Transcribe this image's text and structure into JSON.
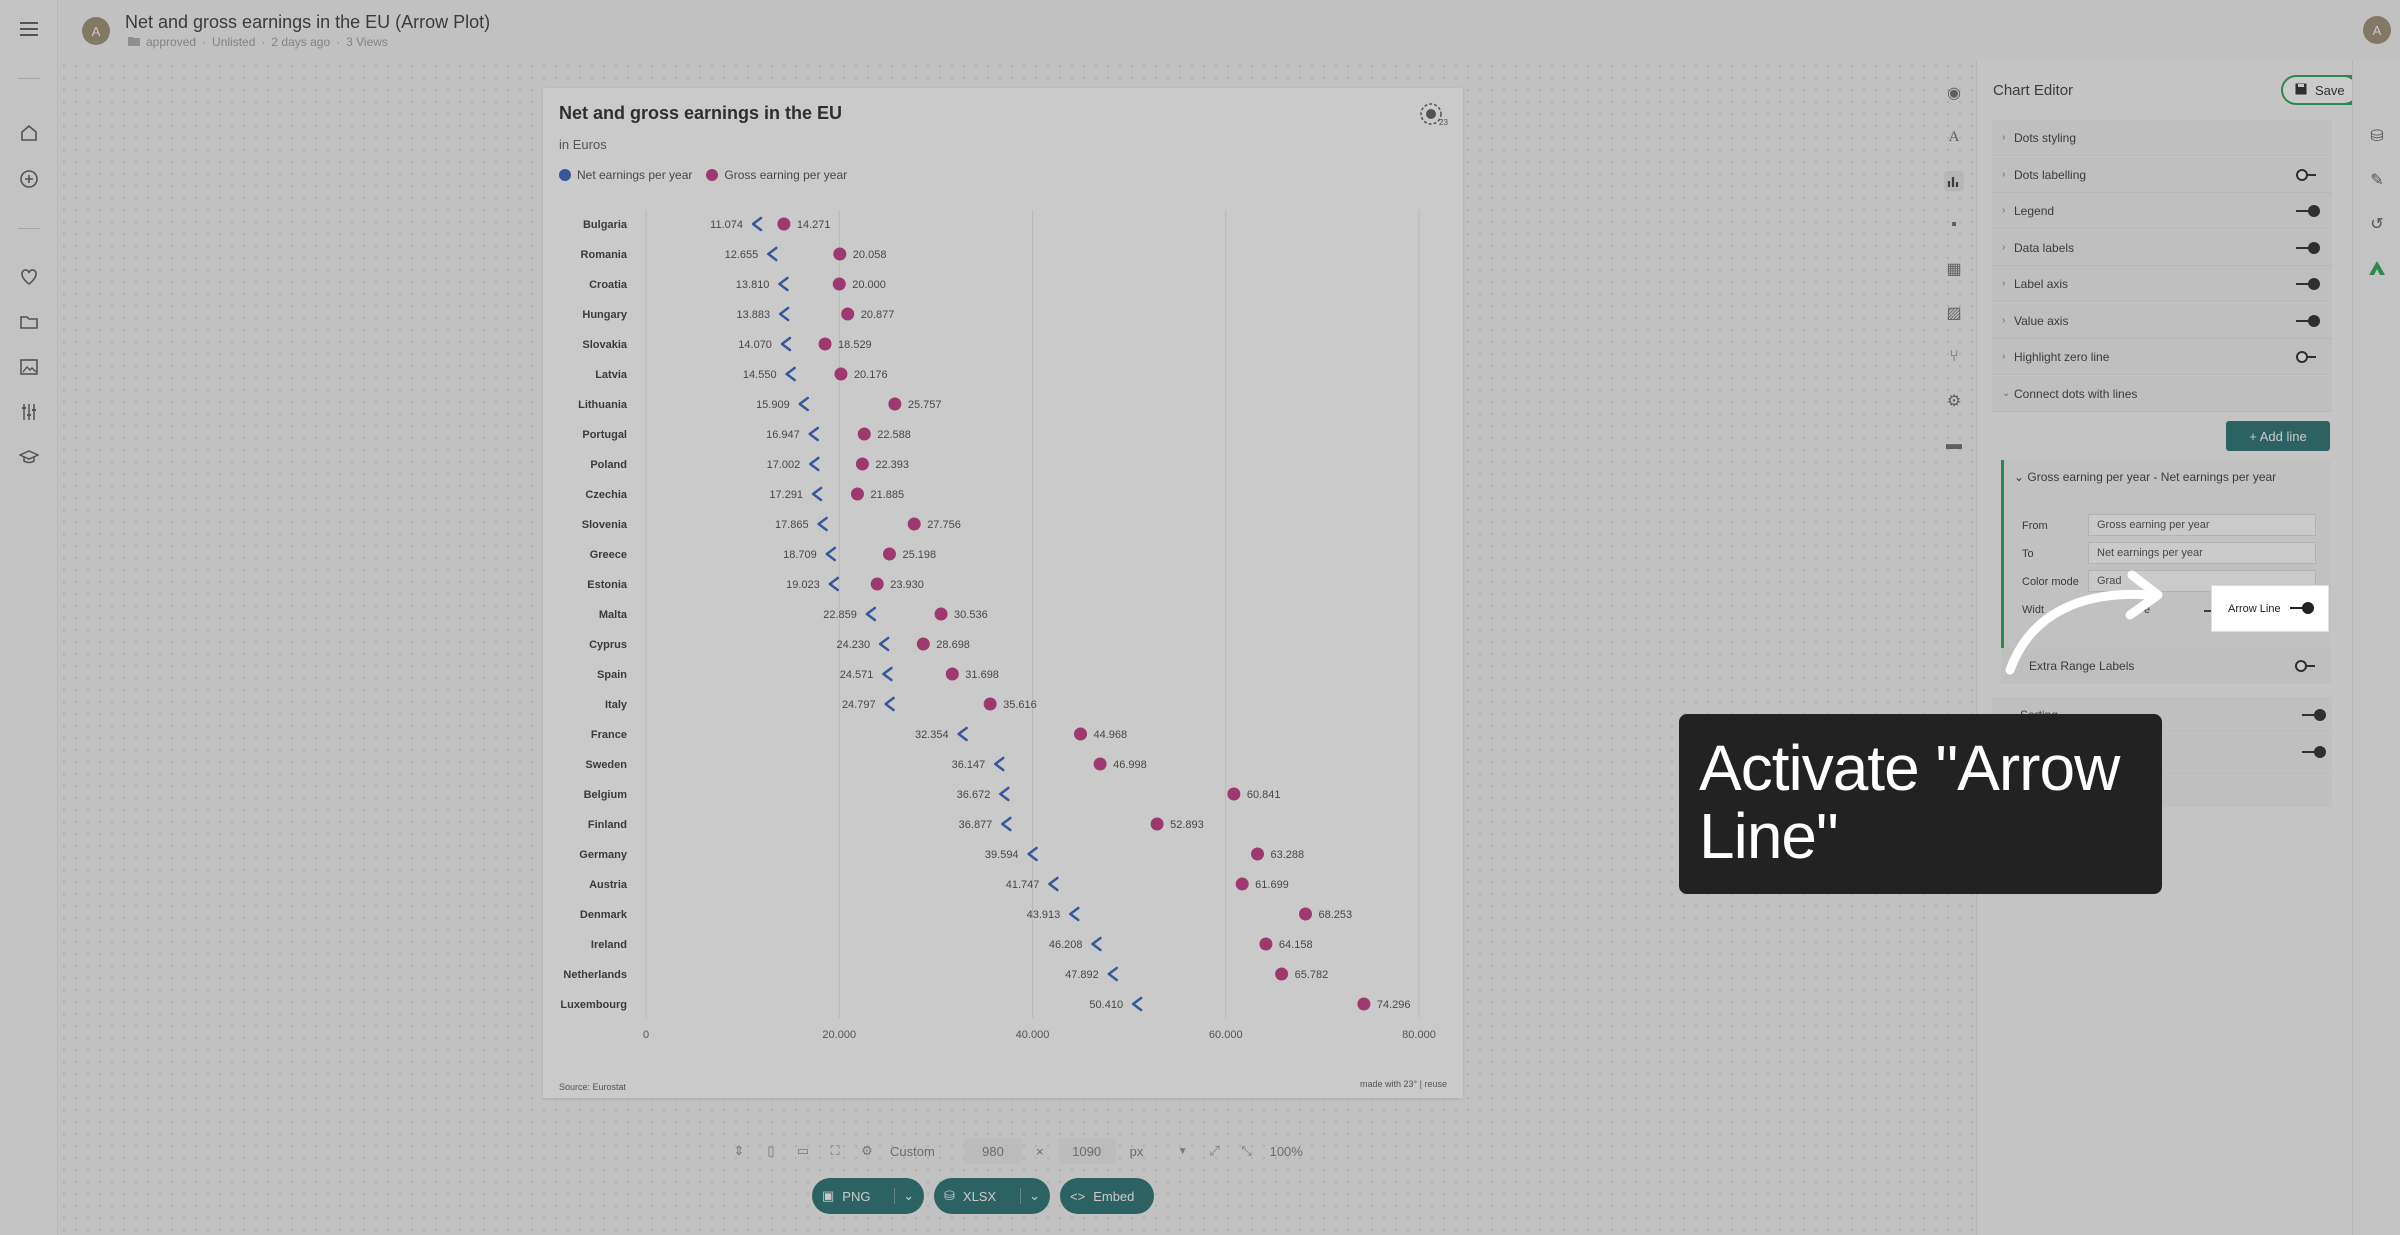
{
  "app": {
    "user_initial": "A",
    "doc_title": "Net and gross earnings in the EU (Arrow Plot)",
    "status": "approved",
    "visibility": "Unlisted",
    "time": "2 days ago",
    "views": "3 Views"
  },
  "chart_data": {
    "type": "arrow-dot",
    "title": "Net and gross earnings in the EU",
    "subtitle": "in Euros",
    "source": "Source: Eurostat",
    "made_with": "made with 23° | reuse",
    "xlim": [
      0,
      80000
    ],
    "ticks": [
      "0",
      "20.000",
      "40.000",
      "60.000",
      "80.000"
    ],
    "tick_values": [
      0,
      20000,
      40000,
      60000,
      80000
    ],
    "categories": [
      "Bulgaria",
      "Romania",
      "Croatia",
      "Hungary",
      "Slovakia",
      "Latvia",
      "Lithuania",
      "Portugal",
      "Poland",
      "Czechia",
      "Slovenia",
      "Greece",
      "Estonia",
      "Malta",
      "Cyprus",
      "Spain",
      "Italy",
      "France",
      "Sweden",
      "Belgium",
      "Finland",
      "Germany",
      "Austria",
      "Denmark",
      "Ireland",
      "Netherlands",
      "Luxembourg"
    ],
    "series": [
      {
        "name": "Net earnings per year",
        "color": "#2d5cb8",
        "values": [
          11074,
          12655,
          13810,
          13883,
          14070,
          14550,
          15909,
          16947,
          17002,
          17291,
          17865,
          18709,
          19023,
          22859,
          24230,
          24571,
          24797,
          32354,
          36147,
          36672,
          36877,
          39594,
          41747,
          43913,
          46208,
          47892,
          50410
        ],
        "labels": [
          "11.074",
          "12.655",
          "13.810",
          "13.883",
          "14.070",
          "14.550",
          "15.909",
          "16.947",
          "17.002",
          "17.291",
          "17.865",
          "18.709",
          "19.023",
          "22.859",
          "24.230",
          "24.571",
          "24.797",
          "32.354",
          "36.147",
          "36.672",
          "36.877",
          "39.594",
          "41.747",
          "43.913",
          "46.208",
          "47.892",
          "50.410"
        ]
      },
      {
        "name": "Gross earning per year",
        "color": "#c0307d",
        "values": [
          14271,
          20058,
          20000,
          20877,
          18529,
          20176,
          25757,
          22588,
          22393,
          21885,
          27756,
          25198,
          23930,
          30536,
          28698,
          31698,
          35616,
          44968,
          46998,
          60841,
          52893,
          63288,
          61699,
          68253,
          64158,
          65782,
          74296
        ],
        "labels": [
          "14.271",
          "20.058",
          "20.000",
          "20.877",
          "18.529",
          "20.176",
          "25.757",
          "22.588",
          "22.393",
          "21.885",
          "27.756",
          "25.198",
          "23.930",
          "30.536",
          "28.698",
          "31.698",
          "35.616",
          "44.968",
          "46.998",
          "60.841",
          "52.893",
          "63.288",
          "61.699",
          "68.253",
          "64.158",
          "65.782",
          "74.296"
        ]
      }
    ],
    "grid": true
  },
  "bottom": {
    "size_preset": "Custom",
    "width": "980",
    "times": "×",
    "height": "1090",
    "unit": "px",
    "zoom": "100%"
  },
  "exports": {
    "png": "PNG",
    "xlsx": "XLSX",
    "embed": "Embed"
  },
  "editor": {
    "title": "Chart Editor",
    "save": "Save",
    "sections": [
      {
        "label": "Dots styling",
        "toggle": "none"
      },
      {
        "label": "Dots labelling",
        "toggle": "off"
      },
      {
        "label": "Legend",
        "toggle": "on"
      },
      {
        "label": "Data labels",
        "toggle": "on"
      },
      {
        "label": "Label axis",
        "toggle": "on"
      },
      {
        "label": "Value axis",
        "toggle": "on"
      },
      {
        "label": "Highlight zero line",
        "toggle": "off"
      },
      {
        "label": "Connect dots with lines",
        "toggle": "none"
      }
    ],
    "add_line": "+ Add line",
    "line_card": {
      "title": "Gross earning per year - Net earnings per year",
      "from_label": "From",
      "from_value": "Gross earning per year",
      "to_label": "To",
      "to_value": "Net earnings per year",
      "color_mode_label": "Color mode",
      "color_mode_value": "Grad",
      "width_label": "Widt",
      "width_suffix": "e",
      "arrow_line_label": "Arrow Line"
    },
    "extra_range": "Extra Range Labels",
    "sorting": "Sorting"
  },
  "callout": {
    "text": "Activate \"Arrow Line\""
  }
}
